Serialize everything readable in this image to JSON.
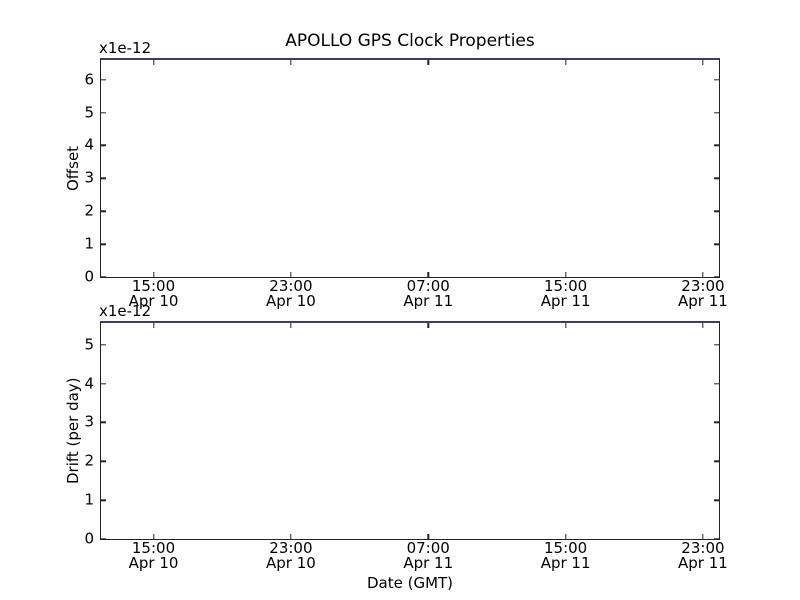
{
  "figure": {
    "title": "APOLLO GPS Clock Properties",
    "xlabel": "Date (GMT)"
  },
  "colors": {
    "background": "#ffffff",
    "spine": "#222222",
    "top_spine": "#3c3c6b",
    "text": "#000000"
  },
  "chart_data": [
    {
      "type": "line",
      "title": "APOLLO GPS Clock Properties",
      "ylabel": "Offset",
      "offset_label": "x1e-12",
      "y_ticks": [
        0,
        1,
        2,
        3,
        4,
        5,
        6
      ],
      "ylim": [
        0,
        6.6
      ],
      "grid": false,
      "legend": false,
      "series": [],
      "x_ticks": [
        {
          "frac": 0.085,
          "time": "15:00",
          "date": "Apr 10"
        },
        {
          "frac": 0.3073,
          "time": "23:00",
          "date": "Apr 10"
        },
        {
          "frac": 0.5295,
          "time": "07:00",
          "date": "Apr 11"
        },
        {
          "frac": 0.7518,
          "time": "15:00",
          "date": "Apr 11"
        },
        {
          "frac": 0.974,
          "time": "23:00",
          "date": "Apr 11"
        }
      ]
    },
    {
      "type": "line",
      "title": "",
      "ylabel": "Drift (per day)",
      "offset_label": "x1e-12",
      "xlabel": "Date (GMT)",
      "y_ticks": [
        0,
        1,
        2,
        3,
        4,
        5
      ],
      "ylim": [
        0,
        5.56
      ],
      "grid": false,
      "legend": false,
      "series": [],
      "x_ticks": [
        {
          "frac": 0.085,
          "time": "15:00",
          "date": "Apr 10"
        },
        {
          "frac": 0.3073,
          "time": "23:00",
          "date": "Apr 10"
        },
        {
          "frac": 0.5295,
          "time": "07:00",
          "date": "Apr 11"
        },
        {
          "frac": 0.7518,
          "time": "15:00",
          "date": "Apr 11"
        },
        {
          "frac": 0.974,
          "time": "23:00",
          "date": "Apr 11"
        }
      ]
    }
  ]
}
